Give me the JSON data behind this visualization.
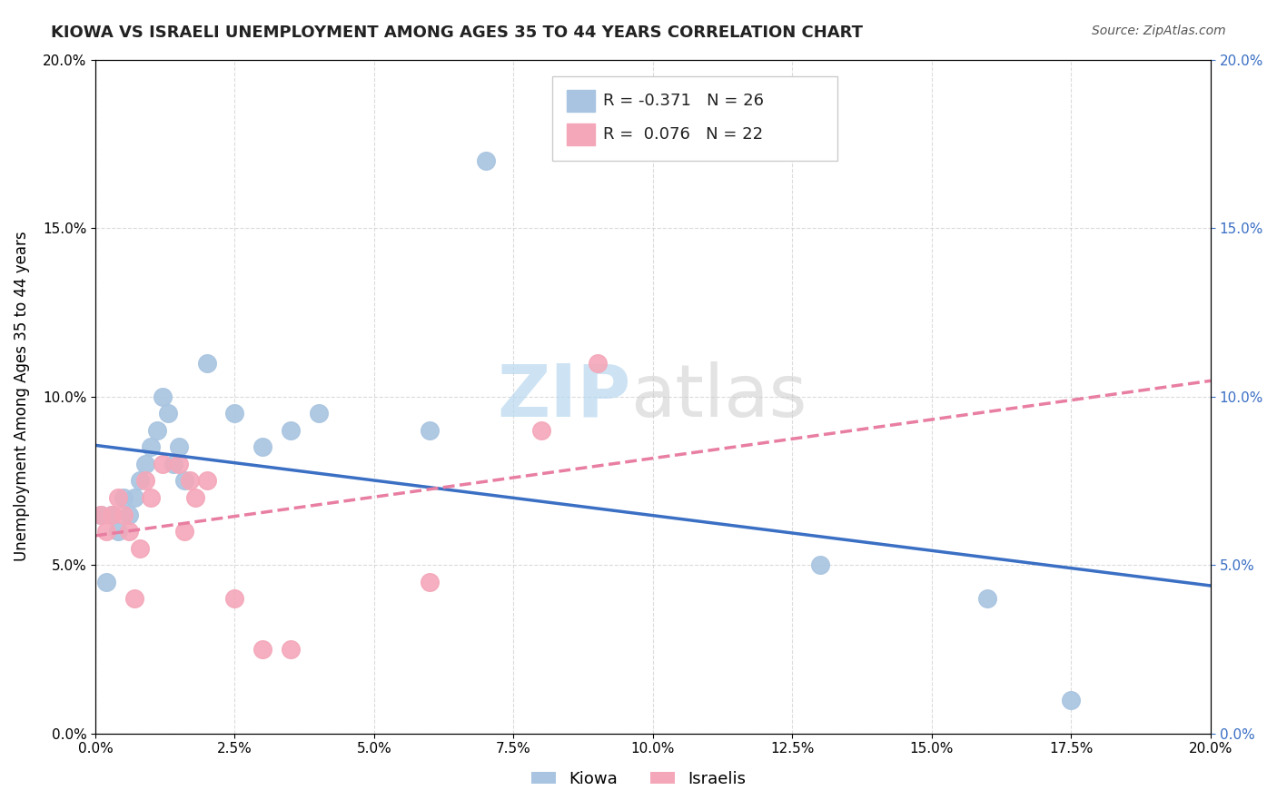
{
  "title": "KIOWA VS ISRAELI UNEMPLOYMENT AMONG AGES 35 TO 44 YEARS CORRELATION CHART",
  "source": "Source: ZipAtlas.com",
  "ylabel": "Unemployment Among Ages 35 to 44 years",
  "xlim": [
    0.0,
    0.2
  ],
  "ylim": [
    0.0,
    0.2
  ],
  "xticks": [
    0.0,
    0.025,
    0.05,
    0.075,
    0.1,
    0.125,
    0.15,
    0.175,
    0.2
  ],
  "yticks": [
    0.0,
    0.05,
    0.1,
    0.15,
    0.2
  ],
  "kiowa_x": [
    0.001,
    0.002,
    0.003,
    0.004,
    0.005,
    0.006,
    0.007,
    0.008,
    0.009,
    0.01,
    0.011,
    0.012,
    0.013,
    0.014,
    0.015,
    0.016,
    0.02,
    0.025,
    0.03,
    0.035,
    0.04,
    0.06,
    0.07,
    0.13,
    0.16,
    0.175
  ],
  "kiowa_y": [
    0.065,
    0.045,
    0.065,
    0.06,
    0.07,
    0.065,
    0.07,
    0.075,
    0.08,
    0.085,
    0.09,
    0.1,
    0.095,
    0.08,
    0.085,
    0.075,
    0.11,
    0.095,
    0.085,
    0.09,
    0.095,
    0.09,
    0.17,
    0.05,
    0.04,
    0.01
  ],
  "israelis_x": [
    0.001,
    0.002,
    0.003,
    0.004,
    0.005,
    0.006,
    0.007,
    0.008,
    0.009,
    0.01,
    0.012,
    0.015,
    0.016,
    0.017,
    0.018,
    0.02,
    0.025,
    0.03,
    0.035,
    0.06,
    0.08,
    0.09
  ],
  "israelis_y": [
    0.065,
    0.06,
    0.065,
    0.07,
    0.065,
    0.06,
    0.04,
    0.055,
    0.075,
    0.07,
    0.08,
    0.08,
    0.06,
    0.075,
    0.07,
    0.075,
    0.04,
    0.025,
    0.025,
    0.045,
    0.09,
    0.11
  ],
  "kiowa_color": "#a8c4e0",
  "israelis_color": "#f4a7b9",
  "kiowa_line_color": "#3a6fc4",
  "israelis_line_color": "#e87ea1",
  "kiowa_R": -0.371,
  "kiowa_N": 26,
  "israelis_R": 0.076,
  "israelis_N": 22,
  "watermark_zip": "ZIP",
  "watermark_atlas": "atlas",
  "background_color": "#ffffff",
  "grid_color": "#cccccc"
}
